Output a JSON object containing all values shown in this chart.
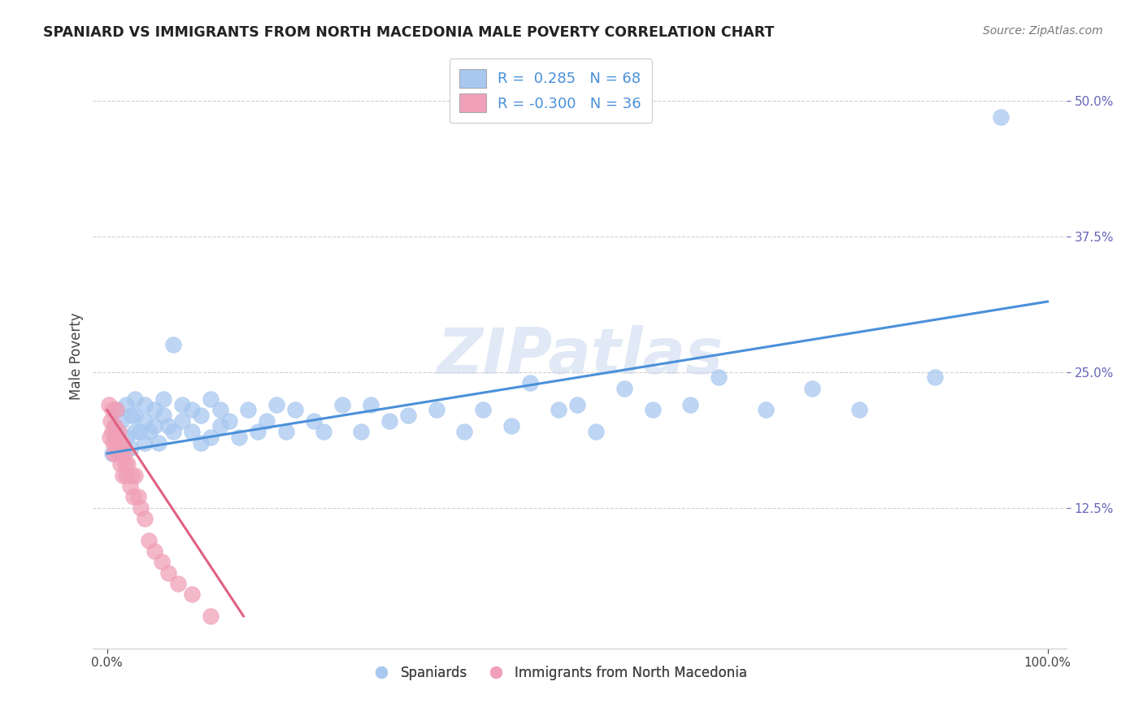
{
  "title": "SPANIARD VS IMMIGRANTS FROM NORTH MACEDONIA MALE POVERTY CORRELATION CHART",
  "source": "Source: ZipAtlas.com",
  "ylabel": "Male Poverty",
  "xlim": [
    0,
    1.0
  ],
  "ylim": [
    0,
    0.52
  ],
  "r_spaniard": 0.285,
  "n_spaniard": 68,
  "r_macedonia": -0.3,
  "n_macedonia": 36,
  "blue_color": "#A8C8F0",
  "pink_color": "#F0A0B8",
  "blue_line_color": "#4A90D9",
  "pink_line_color": "#E06080",
  "watermark": "ZIPatlas",
  "legend_blue_label": "Spaniards",
  "legend_pink_label": "Immigrants from North Macedonia",
  "spaniard_x": [
    0.005,
    0.008,
    0.01,
    0.01,
    0.015,
    0.015,
    0.02,
    0.02,
    0.025,
    0.025,
    0.03,
    0.03,
    0.03,
    0.035,
    0.04,
    0.04,
    0.04,
    0.045,
    0.05,
    0.05,
    0.055,
    0.06,
    0.06,
    0.065,
    0.07,
    0.07,
    0.08,
    0.08,
    0.09,
    0.09,
    0.1,
    0.1,
    0.11,
    0.11,
    0.12,
    0.12,
    0.13,
    0.14,
    0.15,
    0.16,
    0.17,
    0.18,
    0.19,
    0.2,
    0.22,
    0.23,
    0.25,
    0.27,
    0.28,
    0.3,
    0.32,
    0.35,
    0.38,
    0.4,
    0.43,
    0.45,
    0.48,
    0.5,
    0.52,
    0.55,
    0.58,
    0.62,
    0.65,
    0.7,
    0.75,
    0.8,
    0.88,
    0.95
  ],
  "spaniard_y": [
    0.175,
    0.2,
    0.195,
    0.215,
    0.185,
    0.205,
    0.19,
    0.22,
    0.18,
    0.21,
    0.195,
    0.21,
    0.225,
    0.195,
    0.185,
    0.205,
    0.22,
    0.195,
    0.2,
    0.215,
    0.185,
    0.21,
    0.225,
    0.2,
    0.275,
    0.195,
    0.205,
    0.22,
    0.195,
    0.215,
    0.185,
    0.21,
    0.19,
    0.225,
    0.2,
    0.215,
    0.205,
    0.19,
    0.215,
    0.195,
    0.205,
    0.22,
    0.195,
    0.215,
    0.205,
    0.195,
    0.22,
    0.195,
    0.22,
    0.205,
    0.21,
    0.215,
    0.195,
    0.215,
    0.2,
    0.24,
    0.215,
    0.22,
    0.195,
    0.235,
    0.215,
    0.22,
    0.245,
    0.215,
    0.235,
    0.215,
    0.245,
    0.485
  ],
  "macedonia_x": [
    0.002,
    0.003,
    0.004,
    0.005,
    0.005,
    0.006,
    0.007,
    0.008,
    0.009,
    0.01,
    0.01,
    0.011,
    0.012,
    0.013,
    0.014,
    0.015,
    0.016,
    0.017,
    0.018,
    0.019,
    0.02,
    0.022,
    0.024,
    0.026,
    0.028,
    0.03,
    0.033,
    0.036,
    0.04,
    0.044,
    0.05,
    0.058,
    0.065,
    0.075,
    0.09,
    0.11
  ],
  "macedonia_y": [
    0.22,
    0.19,
    0.205,
    0.215,
    0.195,
    0.185,
    0.175,
    0.2,
    0.19,
    0.215,
    0.185,
    0.175,
    0.195,
    0.185,
    0.165,
    0.175,
    0.185,
    0.155,
    0.175,
    0.165,
    0.155,
    0.165,
    0.145,
    0.155,
    0.135,
    0.155,
    0.135,
    0.125,
    0.115,
    0.095,
    0.085,
    0.075,
    0.065,
    0.055,
    0.045,
    0.025
  ],
  "blue_line_x": [
    0.0,
    1.0
  ],
  "blue_line_y": [
    0.175,
    0.315
  ],
  "pink_line_x": [
    0.0,
    0.145
  ],
  "pink_line_y": [
    0.215,
    0.025
  ]
}
